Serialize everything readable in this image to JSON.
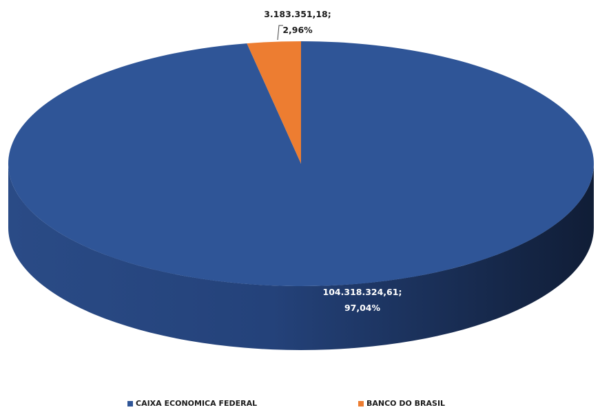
{
  "chart_data": {
    "type": "pie",
    "style": "3d",
    "legend_position": "bottom",
    "slices": [
      {
        "name": "CAIXA ECONOMICA FEDERAL",
        "value": 104318324.61,
        "percent": 97.04,
        "label_value": "104.318.324,61;",
        "label_percent": "97,04%",
        "color": "#2F5597"
      },
      {
        "name": "BANCO DO BRASIL",
        "value": 3183351.18,
        "percent": 2.96,
        "label_value": "3.183.351,18;",
        "label_percent": "2,96%",
        "color": "#ED7D31"
      }
    ]
  }
}
